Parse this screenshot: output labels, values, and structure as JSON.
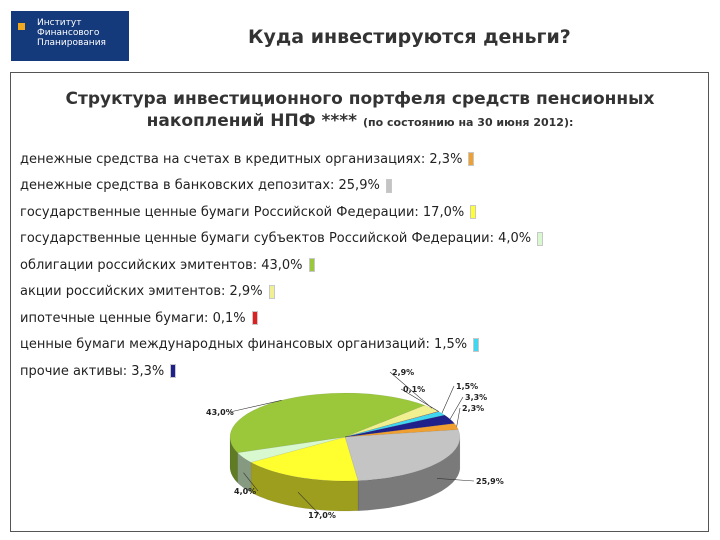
{
  "logo": {
    "lines": [
      "Институт",
      "Финансового",
      "Планирования"
    ]
  },
  "header": {
    "title": "Куда инвестируются деньги?"
  },
  "chart_data": {
    "type": "pie",
    "title_line1": "Структура инвестиционного портфеля средств пенсионных",
    "title_line2": "накоплений НПФ ****",
    "subtitle": "(по состоянию на 30 июня 2012):",
    "series": [
      {
        "name": "денежные средства на счетах в кредитных организациях",
        "value": 2.3,
        "label": "2,3%",
        "legend": "денежные средства на счетах в кредитных организациях: 2,3%",
        "color": "#f0a030"
      },
      {
        "name": "денежные средства в банковских депозитах",
        "value": 25.9,
        "label": "25,9%",
        "legend": "денежные средства в банковских депозитах: 25,9%",
        "color": "#c4c4c4"
      },
      {
        "name": "государственные ценные бумаги Российской Федерации",
        "value": 17.0,
        "label": "17,0%",
        "legend": "государственные ценные бумаги Российской Федерации: 17,0%",
        "color": "#ffff30"
      },
      {
        "name": "государственные ценные бумаги субъектов Российской Федерации",
        "value": 4.0,
        "label": "4,0%",
        "legend": "государственные ценные бумаги субъектов Российской Федерации: 4,0%",
        "color": "#d8f8d0"
      },
      {
        "name": "облигации российских эмитентов",
        "value": 43.0,
        "label": "43,0%",
        "legend": "облигации российских эмитентов: 43,0%",
        "color": "#9ac83a"
      },
      {
        "name": "акции российских эмитентов",
        "value": 2.9,
        "label": "2,9%",
        "legend": "акции российских эмитентов: 2,9%",
        "color": "#f0f090"
      },
      {
        "name": "ипотечные ценные бумаги",
        "value": 0.1,
        "label": "0,1%",
        "legend": "ипотечные ценные бумаги: 0,1%",
        "color": "#e02020"
      },
      {
        "name": "ценные бумаги международных финансовых организаций",
        "value": 1.5,
        "label": "1,5%",
        "legend": "ценные бумаги международных финансовых организаций: 1,5%",
        "color": "#40d8f0"
      },
      {
        "name": "прочие активы",
        "value": 3.3,
        "label": "3,3%",
        "legend": "прочие активы: 3,3%",
        "color": "#20208a"
      }
    ]
  }
}
